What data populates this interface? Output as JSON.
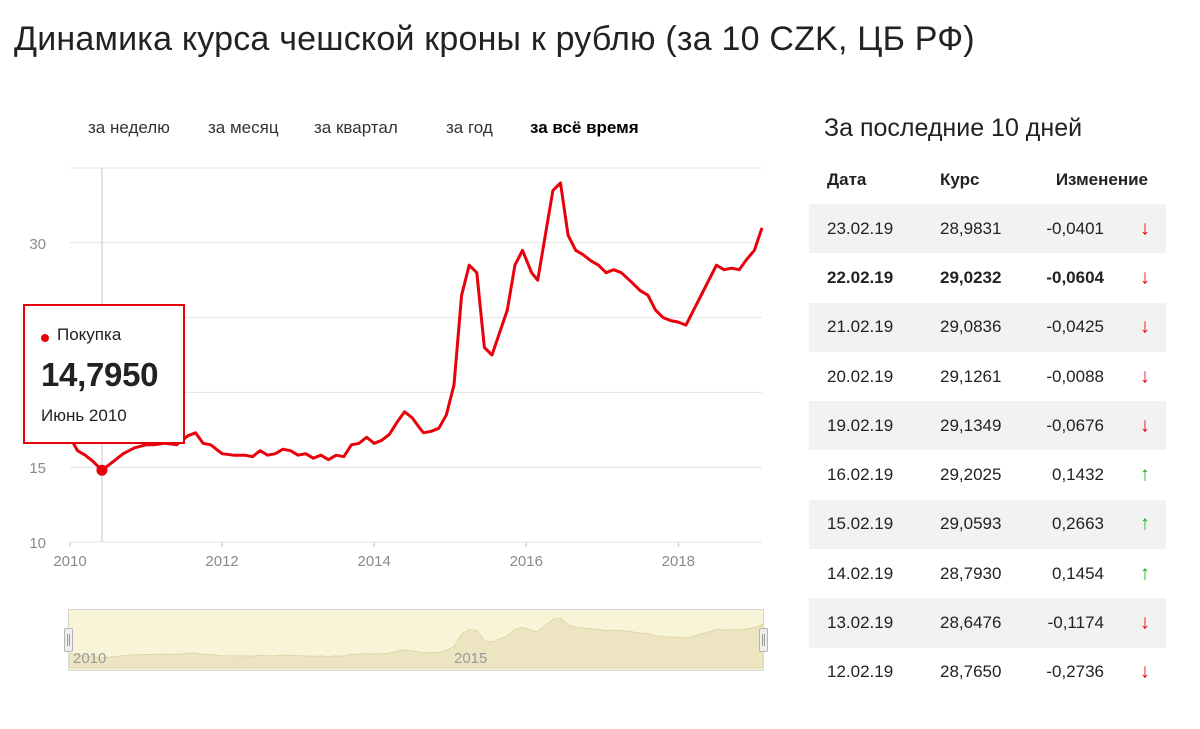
{
  "page_title": "Динамика курса чешской кроны к рублю (за 10 CZK, ЦБ РФ)",
  "periods": [
    {
      "label": "за неделю",
      "active": false
    },
    {
      "label": "за месяц",
      "active": false
    },
    {
      "label": "за квартал",
      "active": false
    },
    {
      "label": "за год",
      "active": false
    },
    {
      "label": "за всё время",
      "active": true
    }
  ],
  "tooltip": {
    "label": "Покупка",
    "value": "14,7950",
    "date": "Июнь 2010"
  },
  "navigator": {
    "labels": [
      "2010",
      "2015"
    ]
  },
  "side": {
    "title": "За последние 10 дней",
    "headers": {
      "date": "Дата",
      "rate": "Курс",
      "change": "Изменение"
    },
    "rows": [
      {
        "date": "23.02.19",
        "rate": "28,9831",
        "change": "-0,0401",
        "dir": "down"
      },
      {
        "date": "22.02.19",
        "rate": "29,0232",
        "change": "-0,0604",
        "dir": "down"
      },
      {
        "date": "21.02.19",
        "rate": "29,0836",
        "change": "-0,0425",
        "dir": "down"
      },
      {
        "date": "20.02.19",
        "rate": "29,1261",
        "change": "-0,0088",
        "dir": "down"
      },
      {
        "date": "19.02.19",
        "rate": "29,1349",
        "change": "-0,0676",
        "dir": "down"
      },
      {
        "date": "16.02.19",
        "rate": "29,2025",
        "change": "0,1432",
        "dir": "up"
      },
      {
        "date": "15.02.19",
        "rate": "29,0593",
        "change": "0,2663",
        "dir": "up"
      },
      {
        "date": "14.02.19",
        "rate": "28,7930",
        "change": "0,1454",
        "dir": "up"
      },
      {
        "date": "13.02.19",
        "rate": "28,6476",
        "change": "-0,1174",
        "dir": "down"
      },
      {
        "date": "12.02.19",
        "rate": "28,7650",
        "change": "-0,2736",
        "dir": "down"
      }
    ]
  },
  "colors": {
    "line": "#e8000b",
    "grid": "#e4e4e4",
    "up": "#19b319",
    "down": "#e8000b",
    "navigator_fill": "#ede5c2"
  },
  "icons": {
    "up": "↑",
    "down": "↓"
  },
  "chart_data": {
    "type": "line",
    "title": "Динамика курса чешской кроны к рублю (за 10 CZK, ЦБ РФ)",
    "xlabel": "",
    "ylabel": "",
    "xlim": [
      2010,
      2019.1
    ],
    "ylim": [
      10,
      35
    ],
    "x_ticks": [
      "2010",
      "2012",
      "2014",
      "2016",
      "2018"
    ],
    "y_ticks": [
      "10",
      "15",
      "30"
    ],
    "grid": true,
    "highlight": {
      "x": 2010.42,
      "y": 14.795
    },
    "series": [
      {
        "x": [
          2010.0,
          2010.1,
          2010.2,
          2010.3,
          2010.42,
          2010.55,
          2010.7,
          2010.85,
          2011.0,
          2011.1,
          2011.25,
          2011.4,
          2011.55,
          2011.65,
          2011.75,
          2011.85,
          2012.0,
          2012.15,
          2012.3,
          2012.4,
          2012.5,
          2012.6,
          2012.7,
          2012.8,
          2012.9,
          2013.0,
          2013.1,
          2013.2,
          2013.3,
          2013.4,
          2013.5,
          2013.6,
          2013.7,
          2013.8,
          2013.9,
          2014.0,
          2014.1,
          2014.2,
          2014.3,
          2014.4,
          2014.5,
          2014.6,
          2014.65,
          2014.75,
          2014.85,
          2014.95,
          2015.05,
          2015.15,
          2015.25,
          2015.35,
          2015.45,
          2015.55,
          2015.65,
          2015.75,
          2015.85,
          2015.95,
          2016.07,
          2016.15,
          2016.25,
          2016.35,
          2016.45,
          2016.55,
          2016.65,
          2016.75,
          2016.85,
          2016.95,
          2017.05,
          2017.15,
          2017.25,
          2017.4,
          2017.5,
          2017.6,
          2017.7,
          2017.8,
          2017.9,
          2018.0,
          2018.1,
          2018.2,
          2018.3,
          2018.4,
          2018.5,
          2018.6,
          2018.7,
          2018.8,
          2018.9,
          2019.0,
          2019.1
        ],
        "y": [
          17.0,
          16.1,
          15.8,
          15.4,
          14.795,
          15.3,
          15.9,
          16.3,
          16.5,
          16.5,
          16.6,
          16.5,
          17.1,
          17.3,
          16.6,
          16.5,
          15.9,
          15.8,
          15.8,
          15.7,
          16.1,
          15.8,
          15.9,
          16.2,
          16.1,
          15.8,
          15.9,
          15.6,
          15.8,
          15.5,
          15.8,
          15.7,
          16.5,
          16.6,
          17.0,
          16.6,
          16.8,
          17.2,
          18.0,
          18.7,
          18.3,
          17.6,
          17.3,
          17.4,
          17.6,
          18.5,
          20.5,
          26.5,
          28.5,
          28.0,
          23.0,
          22.5,
          24.0,
          25.5,
          28.5,
          29.5,
          28.0,
          27.5,
          30.5,
          33.5,
          34.0,
          30.5,
          29.5,
          29.2,
          28.8,
          28.5,
          28.0,
          28.2,
          28.0,
          27.3,
          26.8,
          26.5,
          25.5,
          25.0,
          24.8,
          24.7,
          24.5,
          25.5,
          26.5,
          27.5,
          28.5,
          28.2,
          28.3,
          28.2,
          28.9,
          29.5,
          31.0
        ]
      }
    ]
  }
}
